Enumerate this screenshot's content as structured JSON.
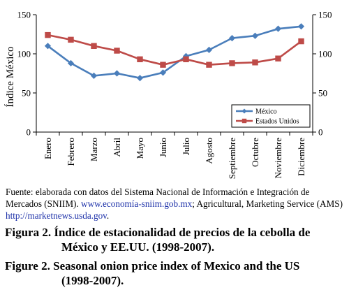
{
  "chart_data": {
    "type": "line",
    "categories": [
      "Enero",
      "Febrero",
      "Marzo",
      "Abril",
      "Mayo",
      "Junio",
      "Julio",
      "Agosto",
      "Septiembre",
      "Octubre",
      "Noviembre",
      "Diciembre"
    ],
    "series": [
      {
        "name": "México",
        "color": "#4a7ebb",
        "marker": "diamond",
        "values": [
          110,
          88,
          72,
          75,
          69,
          76,
          97,
          105,
          120,
          123,
          132,
          135
        ]
      },
      {
        "name": "Estados Unidos",
        "color": "#be4b48",
        "marker": "square",
        "values": [
          124,
          118,
          110,
          104,
          93,
          86,
          93,
          86,
          88,
          89,
          94,
          116
        ]
      }
    ],
    "ylabel": "Índice México",
    "ylim": [
      0,
      150
    ],
    "yticks": [
      0,
      50,
      100,
      150
    ],
    "y2lim": [
      0,
      150
    ],
    "y2ticks": [
      0,
      50,
      100,
      150
    ],
    "grid": false,
    "legend_position": "bottom-right"
  },
  "source": {
    "prefix": "Fuente: elaborada con datos del Sistema Nacional de Información e Integración de Mercados (SNIIM).",
    "link1": "www.economía-sniim.gob.mx",
    "middle": "; Agricultural, Marketing Service (AMS)",
    "link2": "http://marketnews.usda.gov",
    "suffix": "."
  },
  "caption_es": {
    "label": "Figura 2.",
    "line1": "Índice de estacionalidad de precios de la cebolla de",
    "line2": "México y EE.UU. (1998-2007)."
  },
  "caption_en": {
    "label": "Figure 2.",
    "line1": "Seasonal onion price index of Mexico and the US",
    "line2": "(1998-2007)."
  }
}
